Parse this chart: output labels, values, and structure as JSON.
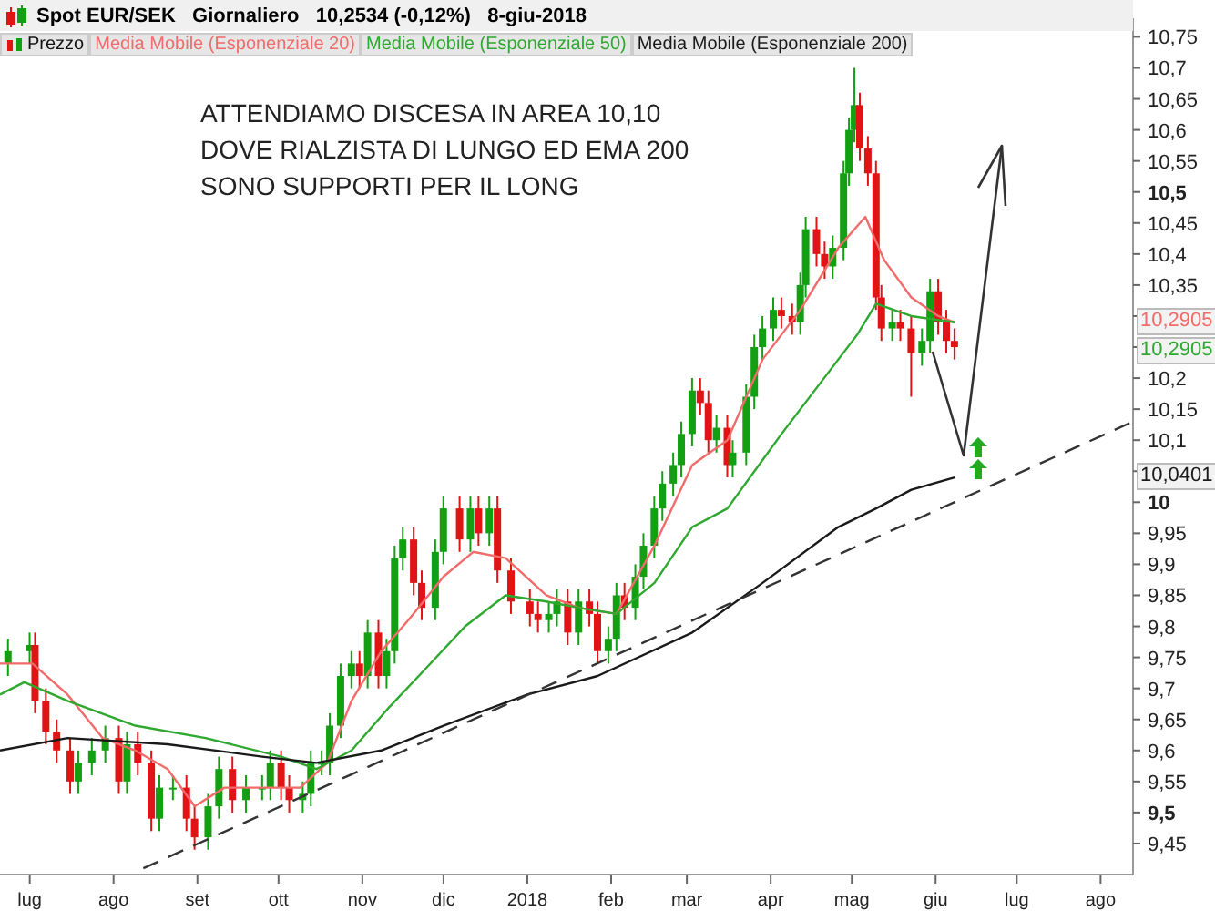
{
  "chart_data": {
    "type": "candlestick",
    "title": "Spot EUR/SEK   Giornaliero   10,2534 (-0,12%)   8-giu-2018",
    "legend": "top left",
    "xlim": [
      "2017-06-20",
      "2018-08-13"
    ],
    "xticks": [
      {
        "value": "2017-07-01",
        "label": "lug"
      },
      {
        "value": "2017-08-01",
        "label": "ago"
      },
      {
        "value": "2017-09-01",
        "label": "set"
      },
      {
        "value": "2017-10-01",
        "label": "ott"
      },
      {
        "value": "2017-11-01",
        "label": "nov"
      },
      {
        "value": "2017-12-01",
        "label": "dic"
      },
      {
        "value": "2018-01-01",
        "label": "2018"
      },
      {
        "value": "2018-02-01",
        "label": "feb"
      },
      {
        "value": "2018-03-01",
        "label": "mar"
      },
      {
        "value": "2018-04-01",
        "label": "apr"
      },
      {
        "value": "2018-05-01",
        "label": "mag"
      },
      {
        "value": "2018-06-01",
        "label": "giu"
      },
      {
        "value": "2018-07-01",
        "label": "lug"
      },
      {
        "value": "2018-08-01",
        "label": "ago"
      }
    ],
    "ylim": [
      9.4,
      10.78
    ],
    "yticks": [
      {
        "value": 9.45,
        "label": "9,45"
      },
      {
        "value": 9.5,
        "label": "9,5"
      },
      {
        "value": 9.55,
        "label": "9,55"
      },
      {
        "value": 9.6,
        "label": "9,6"
      },
      {
        "value": 9.65,
        "label": "9,65"
      },
      {
        "value": 9.7,
        "label": "9,7"
      },
      {
        "value": 9.75,
        "label": "9,75"
      },
      {
        "value": 9.8,
        "label": "9,8"
      },
      {
        "value": 9.85,
        "label": "9,85"
      },
      {
        "value": 9.9,
        "label": "9,9"
      },
      {
        "value": 9.95,
        "label": "9,95"
      },
      {
        "value": 10,
        "label": "10"
      },
      {
        "value": 10.05,
        "label": null
      },
      {
        "value": 10.1,
        "label": "10,1"
      },
      {
        "value": 10.15,
        "label": "10,15"
      },
      {
        "value": 10.2,
        "label": "10,2"
      },
      {
        "value": 10.25,
        "label": null
      },
      {
        "value": 10.3,
        "label": null
      },
      {
        "value": 10.35,
        "label": "10,35"
      },
      {
        "value": 10.4,
        "label": "10,4"
      },
      {
        "value": 10.45,
        "label": "10,45"
      },
      {
        "value": 10.5,
        "label": "10,5"
      },
      {
        "value": 10.55,
        "label": "10,55"
      },
      {
        "value": 10.6,
        "label": "10,6"
      },
      {
        "value": 10.65,
        "label": "10,65"
      },
      {
        "value": 10.7,
        "label": "10,7"
      },
      {
        "value": 10.75,
        "label": "10,75"
      }
    ],
    "annotations": [
      "ATTENDIAMO DISCESA IN AREA 10,10",
      "DOVE RIALZISTA DI LUNGO ED EMA 200",
      "SONO SUPPORTI PER IL LONG",
      "10,2905",
      "10,2905",
      "10,0401"
    ],
    "series": [
      {
        "name": "Prezzo",
        "type": "candlestick",
        "x": [
          "2017-06-23",
          "2017-07-01",
          "2017-07-03",
          "2017-07-07",
          "2017-07-11",
          "2017-07-16",
          "2017-07-19",
          "2017-07-24",
          "2017-07-29",
          "2017-08-03",
          "2017-08-06",
          "2017-08-10",
          "2017-08-15",
          "2017-08-18",
          "2017-08-23",
          "2017-08-28",
          "2017-08-31",
          "2017-09-05",
          "2017-09-09",
          "2017-09-14",
          "2017-09-19",
          "2017-09-25",
          "2017-09-28",
          "2017-10-02",
          "2017-10-05",
          "2017-10-10",
          "2017-10-13",
          "2017-10-17",
          "2017-10-20",
          "2017-10-24",
          "2017-10-28",
          "2017-10-31",
          "2017-11-03",
          "2017-11-07",
          "2017-11-10",
          "2017-11-13",
          "2017-11-16",
          "2017-11-20",
          "2017-11-23",
          "2017-11-28",
          "2017-12-01",
          "2017-12-07",
          "2017-12-11",
          "2017-12-14",
          "2017-12-18",
          "2017-12-21",
          "2017-12-26",
          "2018-01-02",
          "2018-01-05",
          "2018-01-09",
          "2018-01-12",
          "2018-01-16",
          "2018-01-20",
          "2018-01-24",
          "2018-01-27",
          "2018-01-31",
          "2018-02-03",
          "2018-02-06",
          "2018-02-10",
          "2018-02-13",
          "2018-02-17",
          "2018-02-20",
          "2018-02-24",
          "2018-02-27",
          "2018-03-03",
          "2018-03-06",
          "2018-03-09",
          "2018-03-12",
          "2018-03-16",
          "2018-03-18",
          "2018-03-23",
          "2018-03-26",
          "2018-03-29",
          "2018-04-02",
          "2018-04-05",
          "2018-04-09",
          "2018-04-12",
          "2018-04-14",
          "2018-04-18",
          "2018-04-21",
          "2018-04-24",
          "2018-04-28",
          "2018-04-30",
          "2018-05-02",
          "2018-05-04",
          "2018-05-07",
          "2018-05-10",
          "2018-05-12",
          "2018-05-16",
          "2018-05-19",
          "2018-05-23",
          "2018-05-27",
          "2018-05-30",
          "2018-06-02",
          "2018-06-05",
          "2018-06-08"
        ],
        "ohlc": [
          [
            9.74,
            9.78,
            9.72,
            9.76
          ],
          [
            9.76,
            9.79,
            9.74,
            9.77
          ],
          [
            9.77,
            9.79,
            9.66,
            9.68
          ],
          [
            9.68,
            9.7,
            9.61,
            9.63
          ],
          [
            9.63,
            9.65,
            9.58,
            9.6
          ],
          [
            9.6,
            9.62,
            9.53,
            9.55
          ],
          [
            9.55,
            9.6,
            9.53,
            9.58
          ],
          [
            9.58,
            9.62,
            9.56,
            9.6
          ],
          [
            9.6,
            9.64,
            9.58,
            9.62
          ],
          [
            9.62,
            9.64,
            9.53,
            9.55
          ],
          [
            9.55,
            9.63,
            9.53,
            9.61
          ],
          [
            9.61,
            9.63,
            9.56,
            9.58
          ],
          [
            9.58,
            9.6,
            9.47,
            9.49
          ],
          [
            9.49,
            9.56,
            9.47,
            9.54
          ],
          [
            9.54,
            9.56,
            9.52,
            9.54
          ],
          [
            9.54,
            9.56,
            9.47,
            9.49
          ],
          [
            9.49,
            9.51,
            9.44,
            9.46
          ],
          [
            9.46,
            9.53,
            9.44,
            9.51
          ],
          [
            9.51,
            9.59,
            9.49,
            9.57
          ],
          [
            9.57,
            9.59,
            9.5,
            9.52
          ],
          [
            9.52,
            9.56,
            9.5,
            9.54
          ],
          [
            9.54,
            9.56,
            9.52,
            9.54
          ],
          [
            9.54,
            9.6,
            9.52,
            9.58
          ],
          [
            9.58,
            9.6,
            9.52,
            9.54
          ],
          [
            9.54,
            9.56,
            9.5,
            9.52
          ],
          [
            9.52,
            9.55,
            9.5,
            9.53
          ],
          [
            9.53,
            9.6,
            9.51,
            9.58
          ],
          [
            9.58,
            9.6,
            9.56,
            9.58
          ],
          [
            9.58,
            9.66,
            9.56,
            9.64
          ],
          [
            9.64,
            9.74,
            9.62,
            9.72
          ],
          [
            9.72,
            9.76,
            9.7,
            9.74
          ],
          [
            9.74,
            9.76,
            9.7,
            9.72
          ],
          [
            9.72,
            9.81,
            9.7,
            9.79
          ],
          [
            9.79,
            9.81,
            9.7,
            9.72
          ],
          [
            9.72,
            9.78,
            9.7,
            9.76
          ],
          [
            9.76,
            9.93,
            9.74,
            9.91
          ],
          [
            9.91,
            9.96,
            9.89,
            9.94
          ],
          [
            9.94,
            9.96,
            9.85,
            9.87
          ],
          [
            9.87,
            9.89,
            9.81,
            9.83
          ],
          [
            9.83,
            9.94,
            9.81,
            9.92
          ],
          [
            9.92,
            10.01,
            9.9,
            9.99
          ],
          [
            9.99,
            10.01,
            9.92,
            9.94
          ],
          [
            9.94,
            10.01,
            9.92,
            9.99
          ],
          [
            9.99,
            10.01,
            9.93,
            9.95
          ],
          [
            9.95,
            10.01,
            9.93,
            9.99
          ],
          [
            9.99,
            10.01,
            9.87,
            9.89
          ],
          [
            9.89,
            9.91,
            9.82,
            9.84
          ],
          [
            9.84,
            9.86,
            9.8,
            9.82
          ],
          [
            9.82,
            9.84,
            9.79,
            9.81
          ],
          [
            9.81,
            9.84,
            9.79,
            9.82
          ],
          [
            9.82,
            9.86,
            9.8,
            9.84
          ],
          [
            9.84,
            9.86,
            9.77,
            9.79
          ],
          [
            9.79,
            9.86,
            9.77,
            9.84
          ],
          [
            9.84,
            9.86,
            9.8,
            9.82
          ],
          [
            9.82,
            9.84,
            9.74,
            9.76
          ],
          [
            9.76,
            9.8,
            9.74,
            9.78
          ],
          [
            9.78,
            9.87,
            9.76,
            9.85
          ],
          [
            9.85,
            9.87,
            9.81,
            9.83
          ],
          [
            9.83,
            9.9,
            9.81,
            9.88
          ],
          [
            9.88,
            9.95,
            9.86,
            9.93
          ],
          [
            9.93,
            10.01,
            9.91,
            9.99
          ],
          [
            9.99,
            10.05,
            9.97,
            10.03
          ],
          [
            10.03,
            10.08,
            10.01,
            10.06
          ],
          [
            10.06,
            10.13,
            10.04,
            10.11
          ],
          [
            10.11,
            10.2,
            10.09,
            10.18
          ],
          [
            10.18,
            10.2,
            10.14,
            10.16
          ],
          [
            10.16,
            10.18,
            10.08,
            10.1
          ],
          [
            10.1,
            10.14,
            10.08,
            10.12
          ],
          [
            10.12,
            10.14,
            10.04,
            10.06
          ],
          [
            10.06,
            10.1,
            10.04,
            10.08
          ],
          [
            10.08,
            10.19,
            10.06,
            10.17
          ],
          [
            10.17,
            10.27,
            10.15,
            10.25
          ],
          [
            10.25,
            10.3,
            10.23,
            10.28
          ],
          [
            10.28,
            10.33,
            10.26,
            10.31
          ],
          [
            10.31,
            10.33,
            10.28,
            10.3
          ],
          [
            10.3,
            10.32,
            10.27,
            10.29
          ],
          [
            10.29,
            10.37,
            10.27,
            10.35
          ],
          [
            10.35,
            10.46,
            10.33,
            10.44
          ],
          [
            10.44,
            10.46,
            10.38,
            10.4
          ],
          [
            10.4,
            10.42,
            10.36,
            10.38
          ],
          [
            10.38,
            10.43,
            10.36,
            10.41
          ],
          [
            10.41,
            10.55,
            10.39,
            10.53
          ],
          [
            10.53,
            10.62,
            10.51,
            10.6
          ],
          [
            10.6,
            10.7,
            10.58,
            10.64
          ],
          [
            10.64,
            10.66,
            10.55,
            10.57
          ],
          [
            10.57,
            10.59,
            10.51,
            10.53
          ],
          [
            10.53,
            10.55,
            10.31,
            10.33
          ],
          [
            10.33,
            10.35,
            10.26,
            10.28
          ],
          [
            10.28,
            10.31,
            10.26,
            10.29
          ],
          [
            10.29,
            10.31,
            10.26,
            10.28
          ],
          [
            10.28,
            10.3,
            10.17,
            10.24
          ],
          [
            10.24,
            10.28,
            10.22,
            10.26
          ],
          [
            10.26,
            10.36,
            10.24,
            10.34
          ],
          [
            10.34,
            10.36,
            10.27,
            10.29
          ],
          [
            10.29,
            10.31,
            10.24,
            10.26
          ],
          [
            10.26,
            10.28,
            10.23,
            10.25
          ]
        ]
      },
      {
        "name": "Media Mobile (Esponenziale 20)",
        "type": "line",
        "color": "#f26b6b",
        "x": [
          "2017-06-20",
          "2017-07-02",
          "2017-07-15",
          "2017-07-28",
          "2017-08-09",
          "2017-08-21",
          "2017-08-31",
          "2017-09-11",
          "2017-09-25",
          "2017-10-09",
          "2017-10-19",
          "2017-10-28",
          "2017-11-08",
          "2017-11-18",
          "2017-12-01",
          "2017-12-12",
          "2017-12-24",
          "2018-01-08",
          "2018-01-20",
          "2018-02-03",
          "2018-02-17",
          "2018-03-03",
          "2018-03-16",
          "2018-03-29",
          "2018-04-12",
          "2018-04-26",
          "2018-05-06",
          "2018-05-13",
          "2018-05-23",
          "2018-06-02",
          "2018-06-08"
        ],
        "values": [
          9.74,
          9.74,
          9.69,
          9.62,
          9.6,
          9.57,
          9.51,
          9.54,
          9.54,
          9.54,
          9.58,
          9.68,
          9.76,
          9.81,
          9.88,
          9.92,
          9.91,
          9.85,
          9.83,
          9.82,
          9.93,
          10.06,
          10.1,
          10.23,
          10.31,
          10.41,
          10.46,
          10.39,
          10.33,
          10.3,
          10.29
        ]
      },
      {
        "name": "Media Mobile (Esponenziale 50)",
        "type": "line",
        "color": "#2ea82e",
        "x": [
          "2017-06-20",
          "2017-06-29",
          "2017-07-15",
          "2017-08-09",
          "2017-09-04",
          "2017-10-02",
          "2017-10-15",
          "2017-10-28",
          "2017-11-11",
          "2017-11-24",
          "2017-12-09",
          "2017-12-24",
          "2018-01-08",
          "2018-01-20",
          "2018-02-03",
          "2018-02-17",
          "2018-03-03",
          "2018-03-16",
          "2018-04-05",
          "2018-04-19",
          "2018-05-03",
          "2018-05-10",
          "2018-05-23",
          "2018-06-08"
        ],
        "values": [
          9.69,
          9.71,
          9.68,
          9.64,
          9.62,
          9.59,
          9.57,
          9.6,
          9.67,
          9.73,
          9.8,
          9.85,
          9.84,
          9.83,
          9.82,
          9.87,
          9.96,
          9.99,
          10.11,
          10.19,
          10.27,
          10.32,
          10.3,
          10.29
        ]
      },
      {
        "name": "Media Mobile (Esponenziale 200)",
        "type": "line",
        "color": "#1a1a1a",
        "x": [
          "2017-06-20",
          "2017-07-15",
          "2017-08-21",
          "2017-09-25",
          "2017-10-15",
          "2017-11-08",
          "2017-12-01",
          "2018-01-01",
          "2018-01-27",
          "2018-03-03",
          "2018-03-29",
          "2018-04-26",
          "2018-05-10",
          "2018-05-23",
          "2018-06-08"
        ],
        "values": [
          9.6,
          9.62,
          9.61,
          9.59,
          9.58,
          9.6,
          9.64,
          9.69,
          9.72,
          9.79,
          9.87,
          9.96,
          9.99,
          10.02,
          10.04
        ]
      },
      {
        "type": "line",
        "color": "#333333",
        "line_style": "dashed",
        "x": [
          "2017-08-12",
          "2018-08-13"
        ],
        "values": [
          9.41,
          10.13
        ]
      }
    ]
  }
}
